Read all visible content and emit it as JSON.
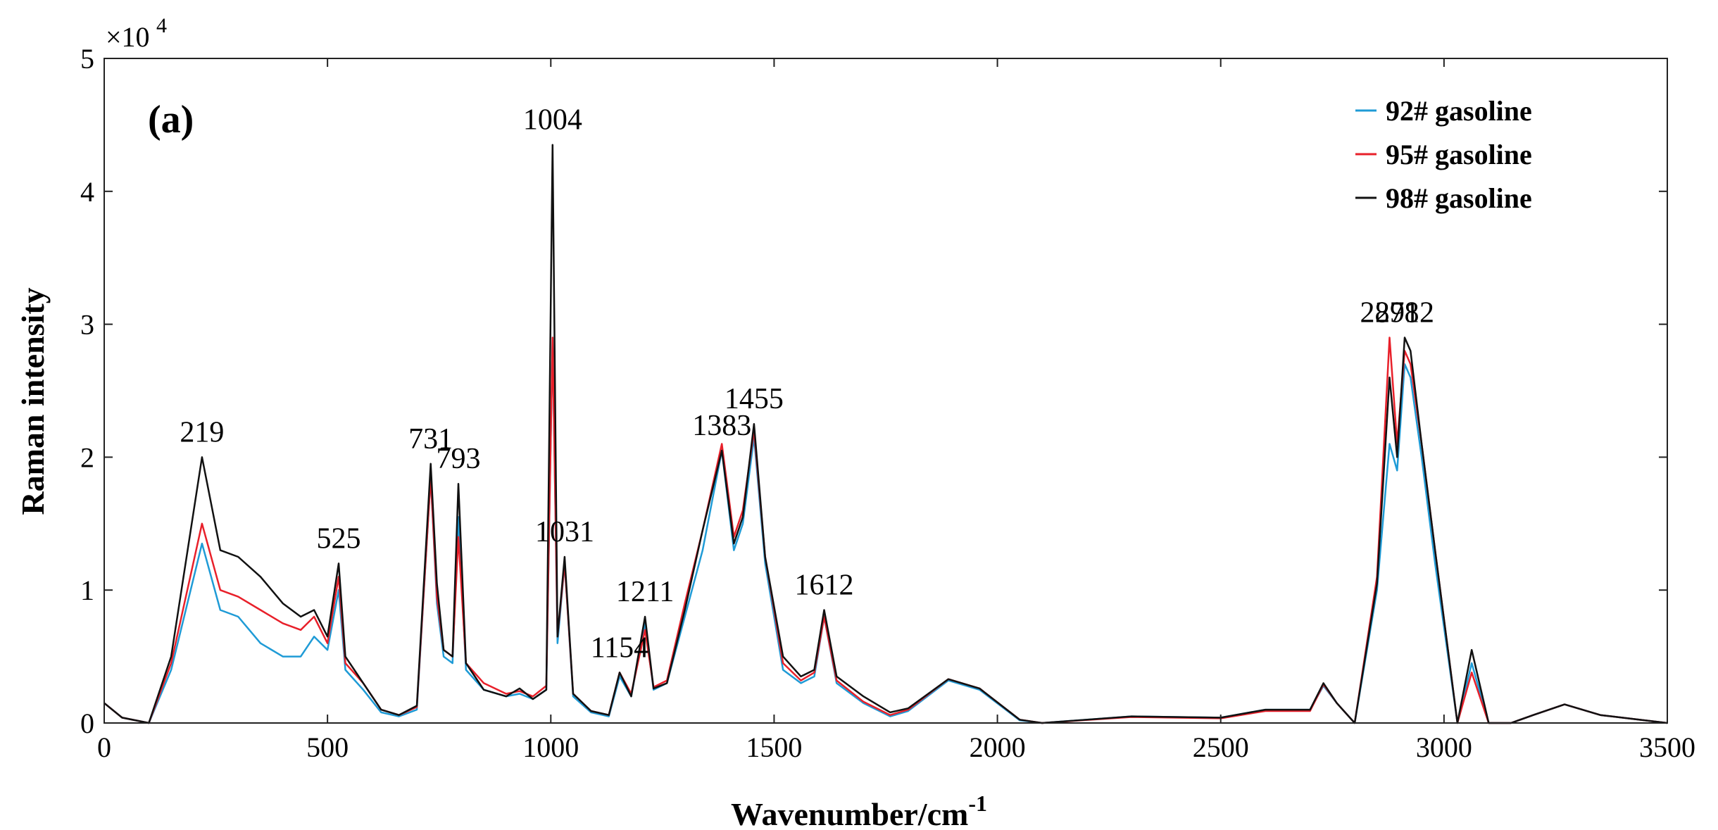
{
  "chart_data": {
    "type": "line",
    "panel_label": "(a)",
    "xlabel": "Wavenumber/cm",
    "xlabel_sup": "-1",
    "ylabel": "Raman intensity",
    "y_multiplier": "×10",
    "y_multiplier_exp": "4",
    "xlim": [
      0,
      3500
    ],
    "ylim": [
      0,
      50000
    ],
    "xticks": [
      0,
      500,
      1000,
      1500,
      2000,
      2500,
      3000,
      3500
    ],
    "yticks": [
      0,
      10000,
      20000,
      30000,
      40000,
      50000
    ],
    "ytick_labels": [
      "0",
      "1",
      "2",
      "3",
      "4",
      "5"
    ],
    "grid": false,
    "legend_position": "top-right",
    "series": [
      {
        "name": "92# gasoline",
        "color": "#1f9bd6",
        "x": [
          0,
          40,
          100,
          150,
          219,
          260,
          300,
          350,
          400,
          440,
          470,
          500,
          525,
          540,
          580,
          620,
          660,
          700,
          731,
          745,
          760,
          780,
          793,
          810,
          850,
          900,
          930,
          960,
          990,
          1004,
          1015,
          1031,
          1050,
          1090,
          1130,
          1154,
          1180,
          1211,
          1230,
          1260,
          1300,
          1340,
          1383,
          1410,
          1430,
          1455,
          1480,
          1520,
          1560,
          1590,
          1612,
          1640,
          1700,
          1760,
          1800,
          1890,
          1960,
          2050,
          2100,
          2300,
          2500,
          2600,
          2700,
          2730,
          2760,
          2800,
          2850,
          2878,
          2895,
          2912,
          2925,
          2950,
          2980,
          3030,
          3062,
          3100,
          3150,
          3200,
          3270,
          3350,
          3450,
          3500
        ],
        "y": [
          1500,
          400,
          0,
          4000,
          13500,
          8500,
          8000,
          6000,
          5000,
          5000,
          6500,
          5500,
          10000,
          4000,
          2500,
          800,
          500,
          1000,
          18500,
          9000,
          5000,
          4500,
          15500,
          4000,
          2500,
          2000,
          2200,
          1800,
          2500,
          29000,
          6000,
          12000,
          2000,
          800,
          500,
          3500,
          2000,
          7500,
          2500,
          3000,
          8000,
          13000,
          20500,
          13000,
          15000,
          21500,
          12000,
          4000,
          3000,
          3500,
          8000,
          3000,
          1500,
          500,
          900,
          3200,
          2500,
          200,
          0,
          500,
          400,
          1000,
          1000,
          2800,
          1500,
          0,
          10000,
          21000,
          19000,
          27000,
          26000,
          20000,
          12000,
          0,
          4500,
          0,
          0,
          600,
          1400,
          600,
          200,
          0
        ]
      },
      {
        "name": "95# gasoline",
        "color": "#e8202a",
        "x": [
          0,
          40,
          100,
          150,
          219,
          260,
          300,
          350,
          400,
          440,
          470,
          500,
          525,
          540,
          580,
          620,
          660,
          700,
          731,
          745,
          760,
          780,
          793,
          810,
          850,
          900,
          930,
          960,
          990,
          1004,
          1015,
          1031,
          1050,
          1090,
          1130,
          1154,
          1180,
          1211,
          1230,
          1260,
          1300,
          1340,
          1383,
          1410,
          1430,
          1455,
          1480,
          1520,
          1560,
          1590,
          1612,
          1640,
          1700,
          1760,
          1800,
          1890,
          1960,
          2050,
          2100,
          2300,
          2500,
          2600,
          2700,
          2730,
          2760,
          2800,
          2850,
          2878,
          2895,
          2912,
          2925,
          2950,
          2980,
          3030,
          3062,
          3100,
          3150,
          3200,
          3270,
          3350,
          3450,
          3500
        ],
        "y": [
          1500,
          400,
          0,
          4500,
          15000,
          10000,
          9500,
          8500,
          7500,
          7000,
          8000,
          6000,
          11000,
          4500,
          3000,
          1000,
          600,
          1200,
          18500,
          9500,
          5500,
          5000,
          14000,
          4500,
          3000,
          2200,
          2400,
          2000,
          2800,
          29000,
          6500,
          12000,
          2200,
          900,
          600,
          3800,
          2200,
          7000,
          2700,
          3200,
          9000,
          14500,
          21000,
          14000,
          16000,
          22000,
          12500,
          4500,
          3200,
          3800,
          8000,
          3200,
          1600,
          600,
          1000,
          3300,
          2600,
          250,
          0,
          450,
          350,
          900,
          900,
          2900,
          1500,
          0,
          11000,
          29000,
          21000,
          28000,
          27000,
          21000,
          13000,
          0,
          3800,
          0,
          0,
          600,
          1400,
          600,
          200,
          0
        ]
      },
      {
        "name": "98# gasoline",
        "color": "#111111",
        "x": [
          0,
          40,
          100,
          150,
          219,
          260,
          300,
          350,
          400,
          440,
          470,
          500,
          525,
          540,
          580,
          620,
          660,
          700,
          731,
          745,
          760,
          780,
          793,
          810,
          850,
          900,
          930,
          960,
          990,
          1004,
          1015,
          1031,
          1050,
          1090,
          1130,
          1154,
          1180,
          1211,
          1230,
          1260,
          1300,
          1340,
          1383,
          1410,
          1430,
          1455,
          1480,
          1520,
          1560,
          1590,
          1612,
          1640,
          1700,
          1760,
          1800,
          1890,
          1960,
          2050,
          2100,
          2300,
          2500,
          2600,
          2700,
          2730,
          2760,
          2800,
          2850,
          2878,
          2895,
          2912,
          2925,
          2950,
          2980,
          3030,
          3062,
          3100,
          3150,
          3200,
          3270,
          3350,
          3450,
          3500
        ],
        "y": [
          1500,
          400,
          0,
          5000,
          20000,
          13000,
          12500,
          11000,
          9000,
          8000,
          8500,
          6500,
          12000,
          5000,
          3000,
          1000,
          600,
          1300,
          19500,
          10500,
          5500,
          5000,
          18000,
          4500,
          2500,
          2000,
          2600,
          1800,
          2500,
          43500,
          6500,
          12500,
          2200,
          900,
          600,
          3800,
          2000,
          8000,
          2600,
          3000,
          8500,
          14500,
          20500,
          13500,
          15500,
          22500,
          12500,
          5000,
          3500,
          4000,
          8500,
          3500,
          2000,
          800,
          1100,
          3300,
          2600,
          250,
          0,
          500,
          400,
          1000,
          1000,
          3000,
          1500,
          0,
          10500,
          26000,
          20000,
          29000,
          28000,
          21000,
          13000,
          0,
          5500,
          0,
          0,
          600,
          1400,
          600,
          200,
          0
        ]
      }
    ],
    "annotations": [
      {
        "text": "219",
        "x": 219,
        "y": 20000
      },
      {
        "text": "525",
        "x": 525,
        "y": 12000
      },
      {
        "text": "731",
        "x": 731,
        "y": 19500
      },
      {
        "text": "793",
        "x": 793,
        "y": 18000
      },
      {
        "text": "1004",
        "x": 1004,
        "y": 43500
      },
      {
        "text": "1031",
        "x": 1031,
        "y": 12500
      },
      {
        "text": "1154",
        "x": 1154,
        "y": 3800
      },
      {
        "text": "1211",
        "x": 1211,
        "y": 8000
      },
      {
        "text": "1383",
        "x": 1383,
        "y": 20500
      },
      {
        "text": "1455",
        "x": 1455,
        "y": 22500
      },
      {
        "text": "1612",
        "x": 1612,
        "y": 8500
      },
      {
        "text": "2878",
        "x": 2878,
        "y": 29000
      },
      {
        "text": "2912",
        "x": 2912,
        "y": 29000
      }
    ]
  }
}
